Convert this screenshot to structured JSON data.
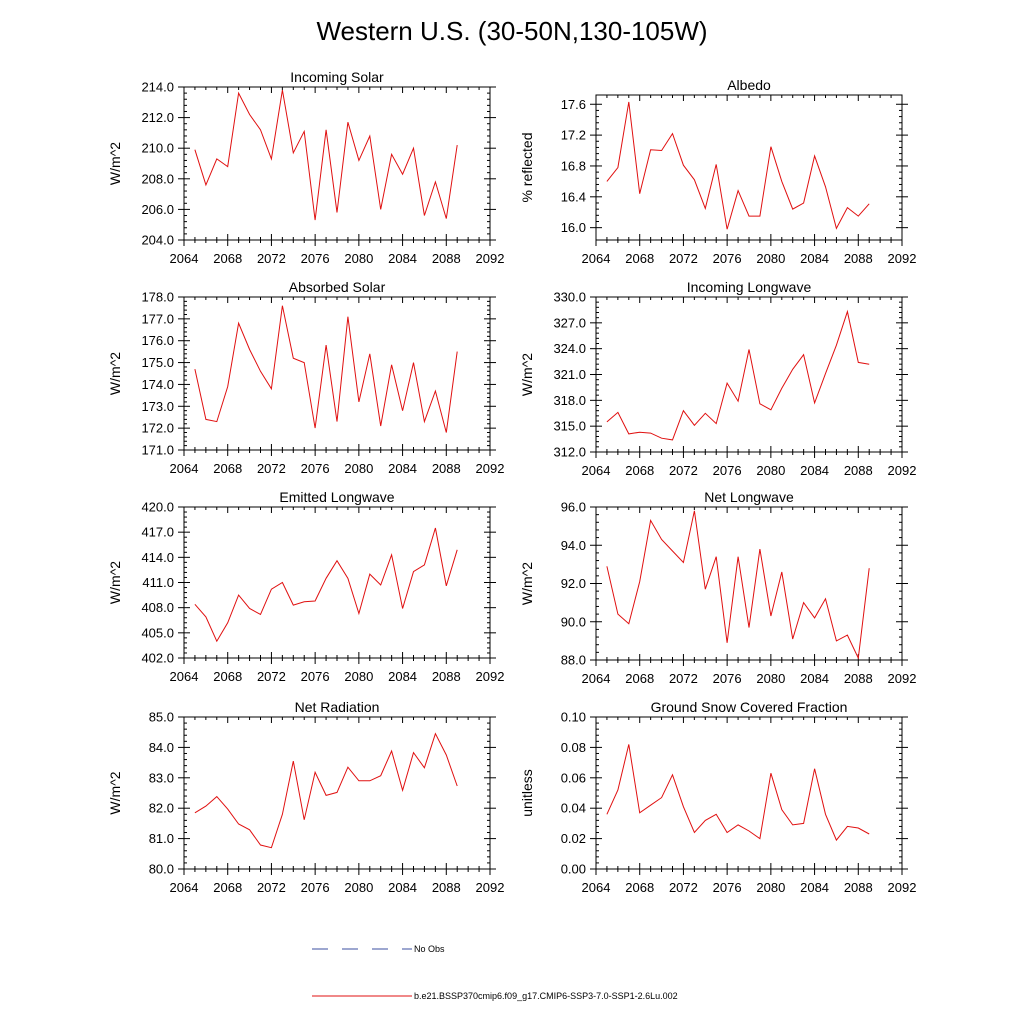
{
  "title": "Western U.S. (30-50N,130-105W)",
  "legend": [
    {
      "label": "No Obs",
      "color": "#3b4fa0",
      "style": "dashed"
    },
    {
      "label": "b.e21.BSSP370cmip6.f09_g17.CMIP6-SSP3-7.0-SSP1-2.6Lu.002",
      "color": "#e01010",
      "style": "solid"
    }
  ],
  "chart_data": [
    {
      "type": "line",
      "title": "Incoming Solar",
      "ylabel": "W/m^2",
      "xlim": [
        2064,
        2092
      ],
      "xticks": [
        "2064",
        "2068",
        "2072",
        "2076",
        "2080",
        "2084",
        "2088",
        "2092"
      ],
      "ylim": [
        204.0,
        214.0
      ],
      "yticks": [
        "204.0",
        "206.0",
        "208.0",
        "210.0",
        "212.0",
        "214.0"
      ],
      "series": [
        {
          "color": "#e01010",
          "x": [
            2065,
            2066,
            2067,
            2068,
            2069,
            2070,
            2071,
            2072,
            2073,
            2074,
            2075,
            2076,
            2077,
            2078,
            2079,
            2080,
            2081,
            2082,
            2083,
            2084,
            2085,
            2086,
            2087,
            2088,
            2089
          ],
          "y": [
            209.9,
            207.6,
            209.3,
            208.8,
            213.6,
            212.2,
            211.2,
            209.3,
            213.8,
            209.7,
            211.1,
            205.3,
            211.2,
            205.8,
            211.7,
            209.2,
            210.8,
            206.0,
            209.6,
            208.3,
            210.0,
            205.6,
            207.8,
            205.4,
            210.2
          ]
        }
      ]
    },
    {
      "type": "line",
      "title": "Albedo",
      "ylabel": "% reflected",
      "xlim": [
        2064,
        2092
      ],
      "xticks": [
        "2064",
        "2068",
        "2072",
        "2076",
        "2080",
        "2084",
        "2088",
        "2092"
      ],
      "ylim": [
        15.84,
        17.72
      ],
      "yticks": [
        "16.0",
        "16.4",
        "16.8",
        "17.2",
        "17.6"
      ],
      "ytick_values": [
        16.0,
        16.4,
        16.8,
        17.2,
        17.6
      ],
      "series": [
        {
          "color": "#e01010",
          "x": [
            2065,
            2066,
            2067,
            2068,
            2069,
            2070,
            2071,
            2072,
            2073,
            2074,
            2075,
            2076,
            2077,
            2078,
            2079,
            2080,
            2081,
            2082,
            2083,
            2084,
            2085,
            2086,
            2087,
            2088,
            2089
          ],
          "y": [
            16.6,
            16.78,
            17.63,
            16.44,
            17.01,
            17.0,
            17.22,
            16.81,
            16.62,
            16.25,
            16.82,
            15.98,
            16.48,
            16.15,
            16.15,
            17.05,
            16.6,
            16.24,
            16.32,
            16.93,
            16.53,
            15.99,
            16.26,
            16.15,
            16.31
          ]
        }
      ]
    },
    {
      "type": "line",
      "title": "Absorbed Solar",
      "ylabel": "W/m^2",
      "xlim": [
        2064,
        2092
      ],
      "xticks": [
        "2064",
        "2068",
        "2072",
        "2076",
        "2080",
        "2084",
        "2088",
        "2092"
      ],
      "ylim": [
        171.0,
        178.0
      ],
      "yticks": [
        "171.0",
        "172.0",
        "173.0",
        "174.0",
        "175.0",
        "176.0",
        "177.0",
        "178.0"
      ],
      "series": [
        {
          "color": "#e01010",
          "x": [
            2065,
            2066,
            2067,
            2068,
            2069,
            2070,
            2071,
            2072,
            2073,
            2074,
            2075,
            2076,
            2077,
            2078,
            2079,
            2080,
            2081,
            2082,
            2083,
            2084,
            2085,
            2086,
            2087,
            2088,
            2089
          ],
          "y": [
            174.7,
            172.4,
            172.3,
            173.9,
            176.8,
            175.6,
            174.6,
            173.8,
            177.6,
            175.2,
            175.0,
            172.0,
            175.8,
            172.3,
            177.1,
            173.2,
            175.4,
            172.1,
            174.9,
            172.8,
            175.0,
            172.3,
            173.7,
            171.8,
            175.5
          ]
        }
      ]
    },
    {
      "type": "line",
      "title": "Incoming Longwave",
      "ylabel": "W/m^2",
      "xlim": [
        2064,
        2092
      ],
      "xticks": [
        "2064",
        "2068",
        "2072",
        "2076",
        "2080",
        "2084",
        "2088",
        "2092"
      ],
      "ylim": [
        312.0,
        330.0
      ],
      "yticks": [
        "312.0",
        "315.0",
        "318.0",
        "321.0",
        "324.0",
        "327.0",
        "330.0"
      ],
      "series": [
        {
          "color": "#e01010",
          "x": [
            2065,
            2066,
            2067,
            2068,
            2069,
            2070,
            2071,
            2072,
            2073,
            2074,
            2075,
            2076,
            2077,
            2078,
            2079,
            2080,
            2081,
            2082,
            2083,
            2084,
            2085,
            2086,
            2087,
            2088,
            2089
          ],
          "y": [
            315.5,
            316.6,
            314.1,
            314.3,
            314.2,
            313.6,
            313.4,
            316.8,
            315.1,
            316.5,
            315.3,
            320.0,
            317.9,
            323.9,
            317.6,
            316.9,
            319.4,
            321.6,
            323.3,
            317.7,
            321.1,
            324.4,
            328.3,
            322.4,
            322.2
          ]
        }
      ]
    },
    {
      "type": "line",
      "title": "Emitted Longwave",
      "ylabel": "W/m^2",
      "xlim": [
        2064,
        2092
      ],
      "xticks": [
        "2064",
        "2068",
        "2072",
        "2076",
        "2080",
        "2084",
        "2088",
        "2092"
      ],
      "ylim": [
        402.0,
        420.0
      ],
      "yticks": [
        "402.0",
        "405.0",
        "408.0",
        "411.0",
        "414.0",
        "417.0",
        "420.0"
      ],
      "series": [
        {
          "color": "#e01010",
          "x": [
            2065,
            2066,
            2067,
            2068,
            2069,
            2070,
            2071,
            2072,
            2073,
            2074,
            2075,
            2076,
            2077,
            2078,
            2079,
            2080,
            2081,
            2082,
            2083,
            2084,
            2085,
            2086,
            2087,
            2088,
            2089
          ],
          "y": [
            408.4,
            406.9,
            404.0,
            406.2,
            409.5,
            407.9,
            407.2,
            410.2,
            411.0,
            408.3,
            408.7,
            408.8,
            411.5,
            413.6,
            411.5,
            407.3,
            412.0,
            410.7,
            414.3,
            407.9,
            412.3,
            413.1,
            417.5,
            410.6,
            414.9
          ]
        }
      ]
    },
    {
      "type": "line",
      "title": "Net Longwave",
      "ylabel": "W/m^2",
      "xlim": [
        2064,
        2092
      ],
      "xticks": [
        "2064",
        "2068",
        "2072",
        "2076",
        "2080",
        "2084",
        "2088",
        "2092"
      ],
      "ylim": [
        88.0,
        96.0
      ],
      "yticks": [
        "88.0",
        "90.0",
        "92.0",
        "94.0",
        "96.0"
      ],
      "series": [
        {
          "color": "#e01010",
          "x": [
            2065,
            2066,
            2067,
            2068,
            2069,
            2070,
            2071,
            2072,
            2073,
            2074,
            2075,
            2076,
            2077,
            2078,
            2079,
            2080,
            2081,
            2082,
            2083,
            2084,
            2085,
            2086,
            2087,
            2088,
            2089
          ],
          "y": [
            92.9,
            90.4,
            89.9,
            92.1,
            95.3,
            94.3,
            93.7,
            93.1,
            95.8,
            91.7,
            93.4,
            88.9,
            93.4,
            89.7,
            93.8,
            90.3,
            92.6,
            89.1,
            91.0,
            90.2,
            91.2,
            89.0,
            89.3,
            88.1,
            92.8
          ]
        }
      ]
    },
    {
      "type": "line",
      "title": "Net Radiation",
      "ylabel": "W/m^2",
      "xlim": [
        2064,
        2092
      ],
      "xticks": [
        "2064",
        "2068",
        "2072",
        "2076",
        "2080",
        "2084",
        "2088",
        "2092"
      ],
      "ylim": [
        80.0,
        85.0
      ],
      "yticks": [
        "80.0",
        "81.0",
        "82.0",
        "83.0",
        "84.0",
        "85.0"
      ],
      "series": [
        {
          "color": "#e01010",
          "x": [
            2065,
            2066,
            2067,
            2068,
            2069,
            2070,
            2071,
            2072,
            2073,
            2074,
            2075,
            2076,
            2077,
            2078,
            2079,
            2080,
            2081,
            2082,
            2083,
            2084,
            2085,
            2086,
            2087,
            2088,
            2089
          ],
          "y": [
            81.85,
            82.07,
            82.38,
            81.97,
            81.48,
            81.29,
            80.79,
            80.7,
            81.8,
            83.55,
            81.62,
            83.18,
            82.42,
            82.52,
            83.35,
            82.9,
            82.9,
            83.07,
            83.88,
            82.59,
            83.83,
            83.33,
            84.45,
            83.75,
            82.73
          ]
        }
      ]
    },
    {
      "type": "line",
      "title": "Ground Snow Covered Fraction",
      "ylabel": "unitless",
      "xlim": [
        2064,
        2092
      ],
      "xticks": [
        "2064",
        "2068",
        "2072",
        "2076",
        "2080",
        "2084",
        "2088",
        "2092"
      ],
      "ylim": [
        0.0,
        0.1
      ],
      "yticks": [
        "0.00",
        "0.02",
        "0.04",
        "0.06",
        "0.08",
        "0.10"
      ],
      "series": [
        {
          "color": "#e01010",
          "x": [
            2065,
            2066,
            2067,
            2068,
            2069,
            2070,
            2071,
            2072,
            2073,
            2074,
            2075,
            2076,
            2077,
            2078,
            2079,
            2080,
            2081,
            2082,
            2083,
            2084,
            2085,
            2086,
            2087,
            2088,
            2089
          ],
          "y": [
            0.036,
            0.052,
            0.082,
            0.037,
            0.042,
            0.047,
            0.062,
            0.041,
            0.024,
            0.032,
            0.036,
            0.024,
            0.029,
            0.025,
            0.02,
            0.063,
            0.039,
            0.029,
            0.03,
            0.066,
            0.036,
            0.019,
            0.028,
            0.027,
            0.023
          ]
        }
      ]
    }
  ]
}
